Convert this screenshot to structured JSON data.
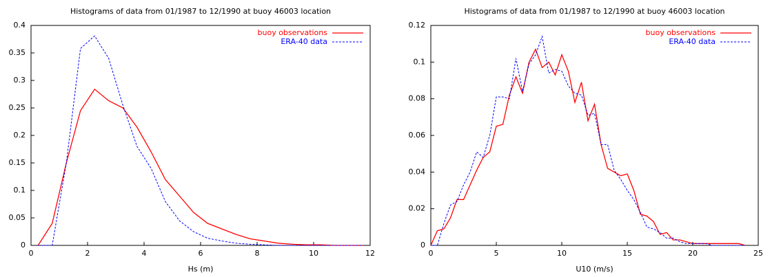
{
  "chart_data": [
    {
      "type": "line",
      "title": "Histograms of data from 01/1987 to 12/1990 at buoy 46003 location",
      "x_label": "Hs (m)",
      "x": [
        0.25,
        0.75,
        1.25,
        1.75,
        2.25,
        2.75,
        3.25,
        3.75,
        4.25,
        4.75,
        5.25,
        5.75,
        6.25,
        6.75,
        7.25,
        7.75,
        8.25,
        8.75,
        9.25,
        9.75,
        10.25,
        10.75,
        11.25,
        11.75
      ],
      "series": [
        {
          "name": "buoy observations",
          "color": "#ff0000",
          "dash": false,
          "values": [
            0,
            0.04,
            0.15,
            0.245,
            0.284,
            0.263,
            0.25,
            0.215,
            0.17,
            0.12,
            0.09,
            0.06,
            0.04,
            0.03,
            0.02,
            0.012,
            0.008,
            0.004,
            0.002,
            0.001,
            0.001,
            0,
            0,
            0
          ]
        },
        {
          "name": "ERA-40 data",
          "color": "#0000ff",
          "dash": true,
          "values": [
            0,
            0,
            0.15,
            0.358,
            0.381,
            0.34,
            0.255,
            0.18,
            0.14,
            0.08,
            0.045,
            0.025,
            0.013,
            0.008,
            0.004,
            0.002,
            0.001,
            0,
            0,
            0,
            0,
            0,
            0,
            0
          ]
        }
      ],
      "xlim": [
        0,
        12
      ],
      "xticks": [
        0,
        2,
        4,
        6,
        8,
        10,
        12
      ],
      "ylim": [
        0,
        0.4
      ],
      "yticks": [
        0,
        0.05,
        0.1,
        0.15,
        0.2,
        0.25,
        0.3,
        0.35,
        0.4
      ],
      "legend": "upper right"
    },
    {
      "type": "line",
      "title": "Histograms of data from 01/1987 to 12/1990 at buoy 46003 location",
      "x_label": "U10 (m/s)",
      "x": [
        0,
        0.5,
        1,
        1.5,
        2,
        2.5,
        3,
        3.5,
        4,
        4.5,
        5,
        5.5,
        6,
        6.5,
        7,
        7.5,
        8,
        8.5,
        9,
        9.5,
        10,
        10.5,
        11,
        11.5,
        12,
        12.5,
        13,
        13.5,
        14,
        14.5,
        15,
        15.5,
        16,
        16.5,
        17,
        17.5,
        18,
        18.5,
        19,
        19.5,
        20,
        20.5,
        21,
        21.5,
        22,
        22.5,
        23,
        23.5,
        24
      ],
      "series": [
        {
          "name": "buoy observations",
          "color": "#ff0000",
          "dash": false,
          "values": [
            0,
            0.008,
            0.009,
            0.015,
            0.025,
            0.025,
            0.033,
            0.041,
            0.048,
            0.051,
            0.065,
            0.066,
            0.082,
            0.092,
            0.083,
            0.1,
            0.107,
            0.097,
            0.1,
            0.093,
            0.104,
            0.095,
            0.078,
            0.089,
            0.068,
            0.077,
            0.055,
            0.042,
            0.04,
            0.038,
            0.039,
            0.03,
            0.017,
            0.016,
            0.013,
            0.006,
            0.007,
            0.003,
            0.003,
            0.002,
            0.001,
            0.001,
            0.001,
            0.001,
            0.001,
            0.001,
            0.001,
            0.001,
            0
          ]
        },
        {
          "name": "ERA-40 data",
          "color": "#0000ff",
          "dash": true,
          "values": [
            0,
            0,
            0.012,
            0.022,
            0.024,
            0.033,
            0.04,
            0.051,
            0.048,
            0.06,
            0.081,
            0.081,
            0.08,
            0.102,
            0.084,
            0.099,
            0.104,
            0.114,
            0.094,
            0.096,
            0.095,
            0.087,
            0.083,
            0.082,
            0.071,
            0.072,
            0.055,
            0.055,
            0.041,
            0.036,
            0.03,
            0.025,
            0.018,
            0.01,
            0.009,
            0.007,
            0.004,
            0.004,
            0.002,
            0.001,
            0.001,
            0.001,
            0.001,
            0,
            0,
            0,
            0,
            0,
            0
          ]
        }
      ],
      "xlim": [
        0,
        25
      ],
      "xticks": [
        0,
        5,
        10,
        15,
        20,
        25
      ],
      "ylim": [
        0,
        0.12
      ],
      "yticks": [
        0,
        0.02,
        0.04,
        0.06,
        0.08,
        0.1,
        0.12
      ],
      "legend": "upper right"
    }
  ]
}
